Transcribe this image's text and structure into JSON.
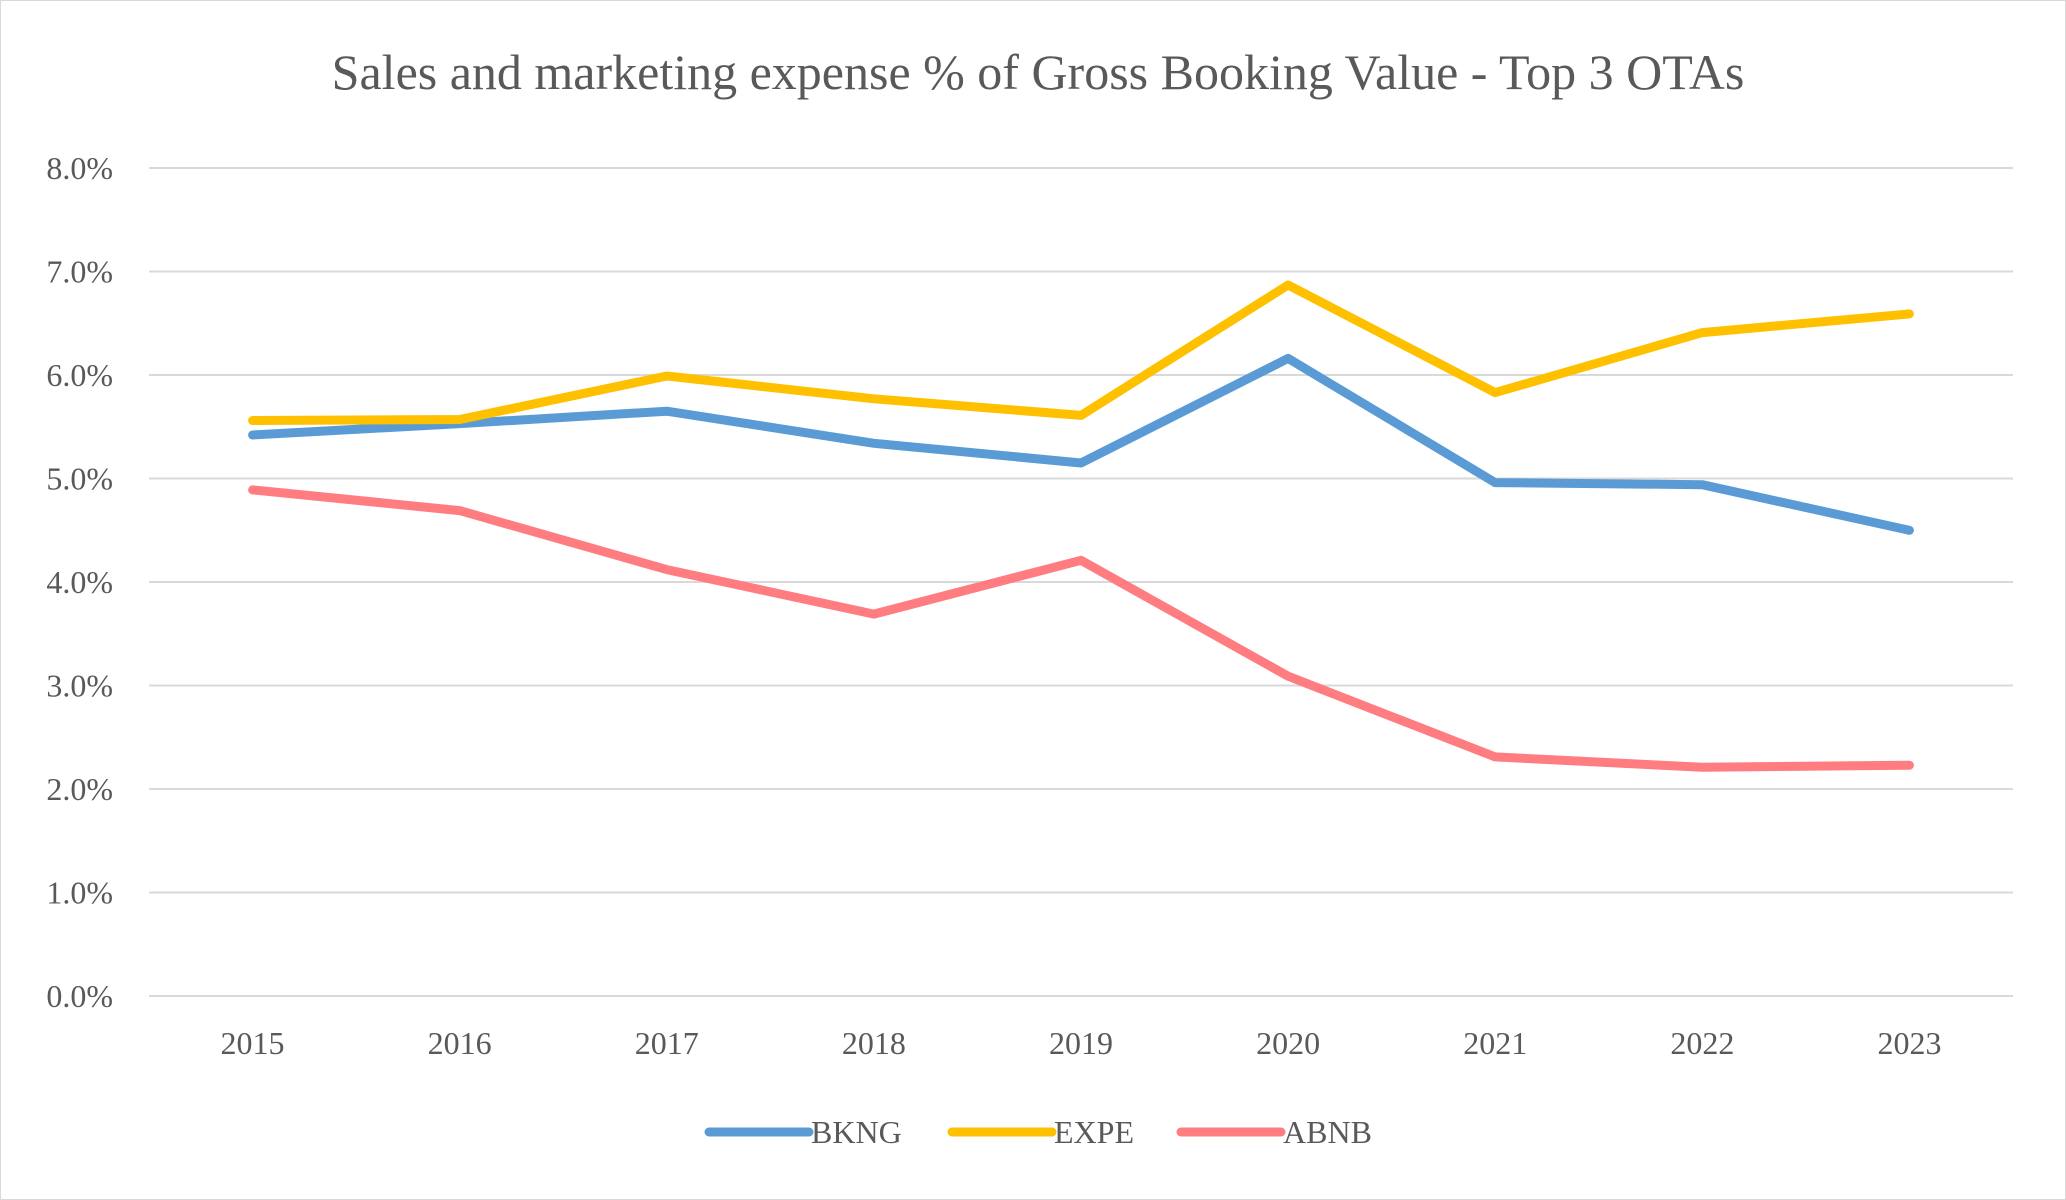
{
  "chart_data": {
    "type": "line",
    "title": "Sales and marketing expense % of Gross Booking Value - Top 3 OTAs",
    "xlabel": "",
    "ylabel": "",
    "categories": [
      "2015",
      "2016",
      "2017",
      "2018",
      "2019",
      "2020",
      "2021",
      "2022",
      "2023"
    ],
    "y_ticks": [
      "0.0%",
      "1.0%",
      "2.0%",
      "3.0%",
      "4.0%",
      "5.0%",
      "6.0%",
      "7.0%",
      "8.0%"
    ],
    "ylim": [
      0,
      8
    ],
    "grid": true,
    "legend_position": "bottom",
    "series": [
      {
        "name": "BKNG",
        "color": "#5b9bd5",
        "values": [
          5.42,
          5.53,
          5.65,
          5.34,
          5.15,
          6.16,
          4.96,
          4.94,
          4.5
        ]
      },
      {
        "name": "EXPE",
        "color": "#ffc000",
        "values": [
          5.56,
          5.57,
          5.99,
          5.77,
          5.61,
          6.87,
          5.83,
          6.41,
          6.59
        ]
      },
      {
        "name": "ABNB",
        "color": "#ff7c80",
        "values": [
          4.89,
          4.69,
          4.12,
          3.69,
          4.21,
          3.09,
          2.31,
          2.21,
          2.23
        ]
      }
    ]
  }
}
